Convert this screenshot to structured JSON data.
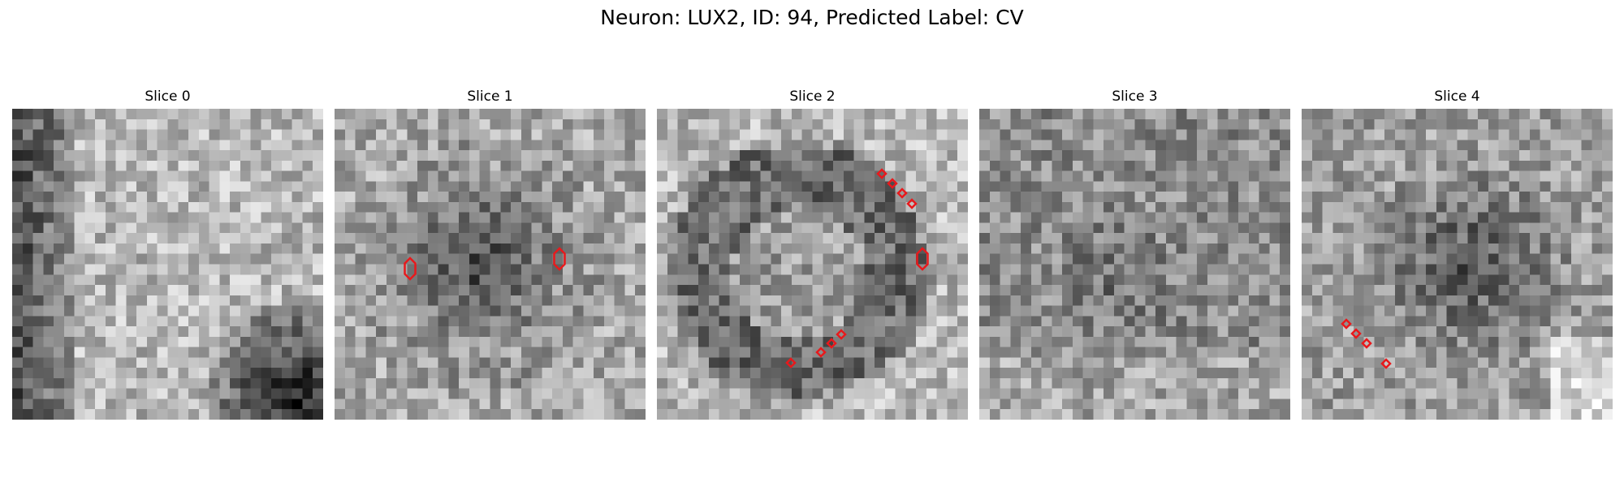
{
  "figure": {
    "title": "Neuron: LUX2, ID: 94, Predicted Label: CV",
    "marker_color": "#e8191c",
    "slices": [
      {
        "title": "Slice 0"
      },
      {
        "title": "Slice 1"
      },
      {
        "title": "Slice 2"
      },
      {
        "title": "Slice 3"
      },
      {
        "title": "Slice 4"
      }
    ]
  }
}
